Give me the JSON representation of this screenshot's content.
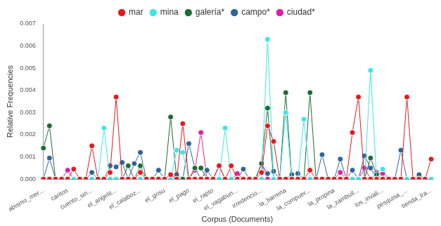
{
  "chart_data": {
    "type": "line",
    "x_label": "Corpus (Documents)",
    "y_label": "Relative Frequencies",
    "categories": [
      "abismo_mer...",
      null,
      null,
      null,
      "caritos",
      null,
      null,
      null,
      "cuento_sin...",
      null,
      null,
      null,
      "el_angelit...",
      null,
      null,
      null,
      "el_calaboz...",
      null,
      null,
      null,
      "el_grisu",
      null,
      null,
      null,
      "el_pago",
      null,
      null,
      null,
      "el_rapto",
      null,
      null,
      null,
      "el_vagabun...",
      null,
      null,
      null,
      "irredencio...",
      null,
      null,
      null,
      "la_barrena",
      null,
      null,
      null,
      "la_compuer...",
      null,
      null,
      null,
      "la_propina",
      null,
      null,
      null,
      "la_zambull...",
      null,
      null,
      null,
      "los_invali...",
      null,
      null,
      null,
      "pesquisa_...",
      null,
      null,
      null,
      "tienda_tra..."
    ],
    "series": [
      {
        "name": "mar",
        "color": "#e3191c",
        "values": [
          0,
          0,
          0,
          0,
          0,
          0.00045,
          0,
          0,
          0.0015,
          0,
          0,
          0.0003,
          0.0037,
          0,
          0,
          0,
          0.0003,
          0,
          0,
          0,
          0,
          0.0002,
          0,
          0.0025,
          0,
          0,
          0,
          0,
          0,
          0.0006,
          0,
          0.0006,
          0,
          0,
          0,
          0,
          0.0003,
          0.0024,
          0.0017,
          0,
          0,
          0,
          0,
          0,
          0.0004,
          0,
          0,
          0,
          0,
          0,
          0,
          0.0021,
          0.0037,
          0,
          0,
          0,
          0,
          0,
          0,
          0,
          0.0037,
          0,
          0,
          0,
          0.0009
        ]
      },
      {
        "name": "mina",
        "color": "#3ee6e8",
        "values": [
          0,
          0,
          0,
          0,
          0,
          0,
          0,
          0,
          0,
          0,
          0.0023,
          0,
          0,
          0,
          0,
          0,
          0,
          0,
          0,
          0,
          0,
          0,
          0.0013,
          0.0012,
          0,
          0,
          0,
          0,
          0,
          0,
          0.0023,
          0,
          0,
          0,
          0,
          0,
          0,
          0.0063,
          0,
          0,
          0.003,
          0,
          0,
          0.0027,
          0,
          0,
          0,
          0,
          0,
          0,
          0,
          0,
          0,
          0,
          0.0049,
          0,
          0.00045,
          0,
          0,
          0,
          0,
          0,
          0,
          0,
          0
        ]
      },
      {
        "name": "galería*",
        "color": "#1d6b35",
        "values": [
          0.0014,
          0.0024,
          0,
          0,
          0,
          0,
          0,
          0,
          0,
          0,
          0,
          0,
          0,
          0,
          0.0006,
          0,
          0.0006,
          0,
          0,
          0,
          0,
          0.0028,
          0,
          0,
          0,
          0.0005,
          0.0005,
          0,
          0,
          0,
          0,
          0,
          0,
          0,
          0,
          0,
          0.0007,
          0.0032,
          0,
          0,
          0.0039,
          0,
          0,
          0,
          0.0039,
          0,
          0,
          0,
          0,
          0,
          0,
          0,
          0,
          0,
          0.00095,
          0.0002,
          0,
          0,
          0,
          0,
          0,
          0,
          0,
          0,
          0
        ]
      },
      {
        "name": "campo*",
        "color": "#2f6496",
        "values": [
          0,
          0.00095,
          0,
          0,
          0,
          0,
          0,
          0,
          0.0003,
          0,
          0,
          0.0006,
          0.00055,
          0.00075,
          0,
          0.0007,
          0.0012,
          0,
          0,
          0.0004,
          0,
          0,
          0.0002,
          0,
          0.0016,
          0.0005,
          0,
          0.0004,
          0,
          0,
          0,
          0,
          0,
          0.00045,
          0,
          0,
          0.0007,
          0.00025,
          0.00035,
          0,
          0,
          0.0002,
          0.00025,
          0,
          0,
          0,
          0.0011,
          0,
          0,
          0.0009,
          0,
          0.0004,
          0,
          0.00105,
          0.0005,
          0,
          0,
          0,
          0,
          0.0013,
          0,
          0,
          0.0002,
          0,
          0
        ]
      },
      {
        "name": "ciudad*",
        "color": "#e01fa3",
        "values": [
          0,
          0,
          0,
          0,
          0.0004,
          0,
          0,
          0,
          0,
          0,
          0,
          0,
          0,
          0,
          0,
          0,
          0,
          0,
          0,
          0,
          0,
          0,
          0,
          0,
          0,
          0.0004,
          0.0021,
          0,
          0,
          0.0006,
          0,
          0,
          0.00025,
          0,
          0,
          0,
          0.0007,
          0,
          0,
          0,
          0,
          0,
          0,
          0,
          0,
          0,
          0,
          0,
          0,
          0.0003,
          0,
          0,
          0,
          0.0005,
          0,
          0.0003,
          0.00025,
          0,
          0,
          0,
          0,
          0,
          0,
          0,
          0
        ]
      }
    ],
    "ylim": [
      0,
      0.007
    ],
    "yticks": [
      {
        "value": 0,
        "label": "0.000"
      },
      {
        "value": 0.001,
        "label": "0.001"
      },
      {
        "value": 0.002,
        "label": "0.002"
      },
      {
        "value": 0.003,
        "label": "0.003"
      },
      {
        "value": 0.004,
        "label": "0.004"
      },
      {
        "value": 0.005,
        "label": "0.005"
      },
      {
        "value": 0.006,
        "label": "0.006"
      },
      {
        "value": 0.007,
        "label": "0.007"
      }
    ],
    "grid": false,
    "legend": "top",
    "marker": "circle",
    "line_style": "solid"
  }
}
